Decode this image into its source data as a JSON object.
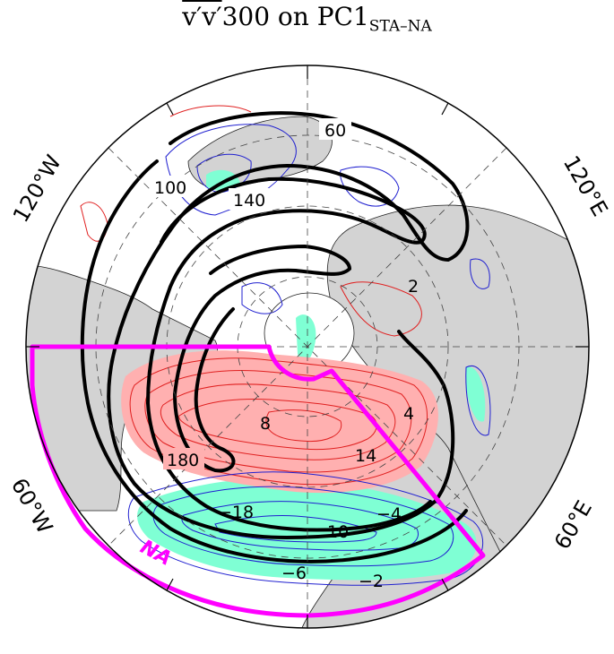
{
  "title": {
    "main": "v′v′",
    "suffix": "300 on PC1",
    "subscript": "STA–NA"
  },
  "longitude_labels": {
    "w120": "120°W",
    "e120": "120°E",
    "w60": "60°W",
    "e60": "60°E"
  },
  "climatology_contour_labels": [
    "60",
    "100",
    "140",
    "180"
  ],
  "positive_anomaly_labels": [
    "2",
    "4",
    "8",
    "14"
  ],
  "negative_anomaly_labels": [
    "−2",
    "−4",
    "−6",
    "10",
    "−18"
  ],
  "region": {
    "name": "NA",
    "color": "#ff00ff"
  },
  "colors": {
    "land": "#d3d3d3",
    "ocean": "#ffffff",
    "positive_fill": "#ffb0b0",
    "positive_line": "#e02020",
    "negative_fill": "#7fffd4",
    "negative_line": "#2020d0",
    "climatology": "#000000",
    "box": "#ff00ff"
  }
}
